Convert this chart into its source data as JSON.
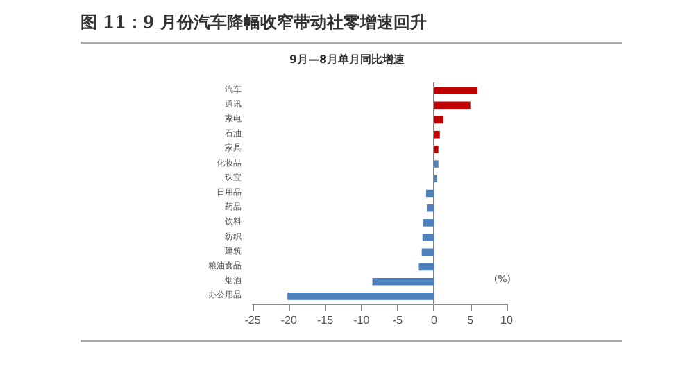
{
  "chart_data": {
    "type": "bar",
    "orientation": "horizontal",
    "title": "图 11：9 月份汽车降幅收窄带动社零增速回升",
    "subtitle": "9月—8月单月同比增速",
    "categories": [
      "汽车",
      "通讯",
      "家电",
      "石油",
      "家具",
      "化妆品",
      "珠宝",
      "日用品",
      "药品",
      "饮料",
      "纺织",
      "建筑",
      "粮油食品",
      "烟酒",
      "办公用品"
    ],
    "values": [
      6.0,
      5.0,
      1.3,
      0.8,
      0.6,
      0.6,
      0.4,
      -1.1,
      -1.0,
      -1.5,
      -1.6,
      -1.7,
      -2.1,
      -8.5,
      -20.2
    ],
    "colors": [
      "#c00000",
      "#c00000",
      "#c00000",
      "#c00000",
      "#c00000",
      "#4f81bd",
      "#4f81bd",
      "#4f81bd",
      "#4f81bd",
      "#4f81bd",
      "#4f81bd",
      "#4f81bd",
      "#4f81bd",
      "#4f81bd",
      "#4f81bd"
    ],
    "xlim": [
      -25,
      10
    ],
    "xticks": [
      -25,
      -20,
      -15,
      -10,
      -5,
      0,
      5,
      10
    ],
    "annotations": [
      "(%)"
    ]
  }
}
